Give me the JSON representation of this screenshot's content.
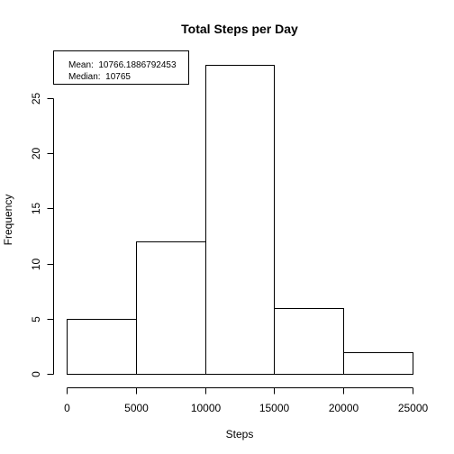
{
  "chart_data": {
    "type": "bar",
    "title": "Total Steps per Day",
    "xlabel": "Steps",
    "ylabel": "Frequency",
    "bins": [
      {
        "start": 0,
        "end": 5000,
        "count": 5
      },
      {
        "start": 5000,
        "end": 10000,
        "count": 12
      },
      {
        "start": 10000,
        "end": 15000,
        "count": 28
      },
      {
        "start": 15000,
        "end": 20000,
        "count": 6
      },
      {
        "start": 20000,
        "end": 25000,
        "count": 2
      }
    ],
    "xlim": [
      0,
      25000
    ],
    "ylim": [
      0,
      28
    ],
    "x_ticks": [
      0,
      5000,
      10000,
      15000,
      20000,
      25000
    ],
    "y_ticks": [
      0,
      5,
      10,
      15,
      20,
      25
    ],
    "grid": false,
    "legend": {
      "placement": "top-left",
      "entries": [
        "Mean:  10766.1886792453",
        "Median:  10765"
      ]
    }
  }
}
